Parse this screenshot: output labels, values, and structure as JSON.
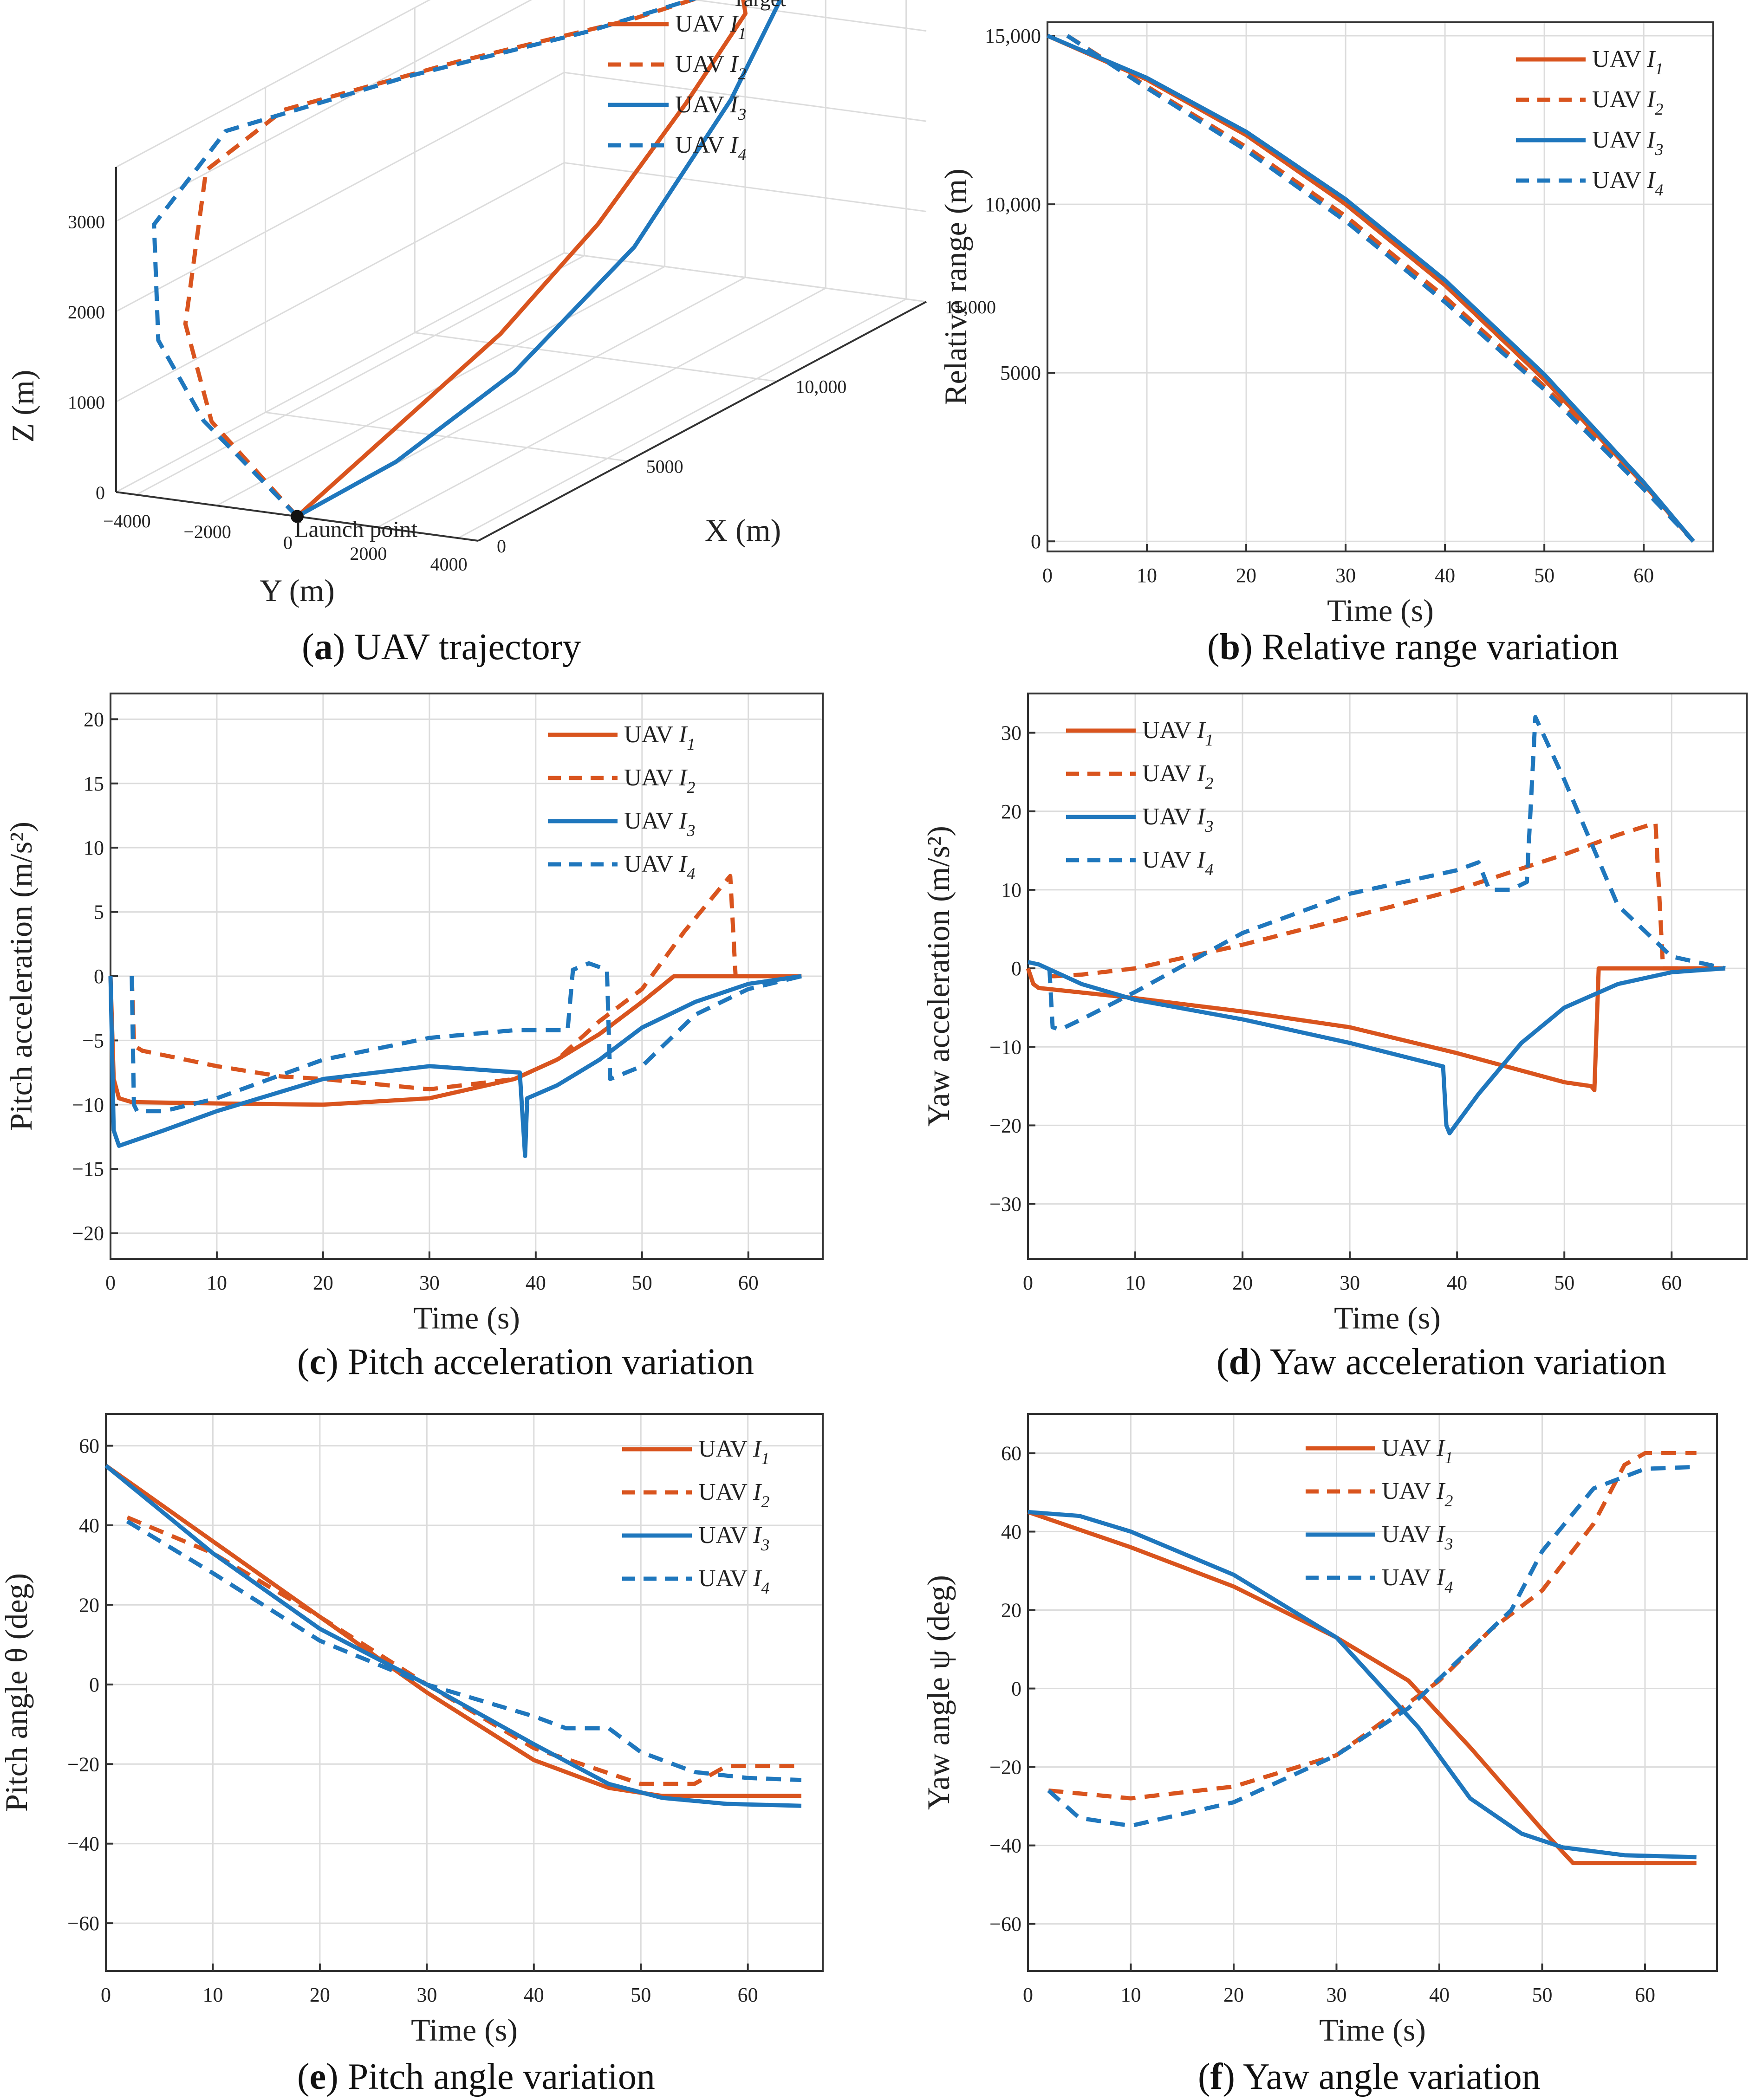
{
  "colors": {
    "orange": "#d9541e",
    "blue": "#1f77bd",
    "axis": "#333333",
    "grid": "#dcdcdc"
  },
  "legend_labels": [
    {
      "name": "UAV",
      "sub": "1"
    },
    {
      "name": "UAV",
      "sub": "2"
    },
    {
      "name": "UAV",
      "sub": "3"
    },
    {
      "name": "UAV",
      "sub": "4"
    }
  ],
  "subfigures": [
    {
      "letter": "a",
      "caption": " UAV trajectory"
    },
    {
      "letter": "b",
      "caption": " Relative range variation"
    },
    {
      "letter": "c",
      "caption": " Pitch acceleration variation"
    },
    {
      "letter": "d",
      "caption": " Yaw acceleration variation"
    },
    {
      "letter": "e",
      "caption": " Pitch angle variation"
    },
    {
      "letter": "f",
      "caption": " Yaw angle variation"
    }
  ],
  "chart_data": [
    {
      "id": "a",
      "type": "line3d",
      "xlabel": "X (m)",
      "ylabel": "Y (m)",
      "zlabel": "Z (m)",
      "xticks": [
        "0",
        "5000",
        "10,000",
        "15,000"
      ],
      "yticks": [
        "−4000",
        "−2000",
        "0",
        "2000",
        "4000"
      ],
      "zticks": [
        "0",
        "1000",
        "2000",
        "3000"
      ],
      "annotations": {
        "target": "Target",
        "launch": "Launch point"
      },
      "series": [
        {
          "name": "UAV I1",
          "color": "orange",
          "dash": false,
          "points": [
            [
              0,
              0,
              0
            ],
            [
              3000,
              300,
              500
            ],
            [
              6000,
              600,
              1000
            ],
            [
              9000,
              800,
              1700
            ],
            [
              12000,
              750,
              2500
            ],
            [
              14200,
              600,
              3100
            ],
            [
              14500,
              300,
              3250
            ],
            [
              14500,
              0,
              3300
            ]
          ]
        },
        {
          "name": "UAV I2",
          "color": "orange",
          "dash": true,
          "points": [
            [
              0,
              0,
              0
            ],
            [
              100,
              -2200,
              900
            ],
            [
              300,
              -3000,
              1900
            ],
            [
              1800,
              -3600,
              3300
            ],
            [
              4000,
              -3300,
              3600
            ],
            [
              8000,
              -2000,
              3500
            ],
            [
              12000,
              -600,
              3350
            ],
            [
              14500,
              0,
              3300
            ]
          ]
        },
        {
          "name": "UAV I3",
          "color": "blue",
          "dash": false,
          "points": [
            [
              0,
              0,
              0
            ],
            [
              2500,
              600,
              200
            ],
            [
              5500,
              1300,
              700
            ],
            [
              9000,
              1700,
              1500
            ],
            [
              12500,
              1500,
              2500
            ],
            [
              14800,
              1000,
              3150
            ],
            [
              15200,
              500,
              3400
            ],
            [
              14500,
              0,
              3300
            ]
          ]
        },
        {
          "name": "UAV I4",
          "color": "blue",
          "dash": true,
          "points": [
            [
              0,
              0,
              0
            ],
            [
              100,
              -2400,
              900
            ],
            [
              200,
              -3600,
              1700
            ],
            [
              1000,
              -4300,
              2800
            ],
            [
              3000,
              -4000,
              3500
            ],
            [
              7000,
              -2400,
              3500
            ],
            [
              11000,
              -900,
              3380
            ],
            [
              14500,
              0,
              3300
            ]
          ]
        }
      ]
    },
    {
      "id": "b",
      "type": "line",
      "xlabel": "Time (s)",
      "ylabel": "Relative range (m)",
      "xlim": [
        0,
        67
      ],
      "ylim": [
        -300,
        15400
      ],
      "xticks": [
        0,
        10,
        20,
        30,
        40,
        50,
        60
      ],
      "xtick_labels": [
        "0",
        "10",
        "20",
        "30",
        "40",
        "50",
        "60"
      ],
      "yticks": [
        0,
        5000,
        10000,
        15000
      ],
      "ytick_labels": [
        "0",
        "5000",
        "10,000",
        "15,000"
      ],
      "legend_pos": "top-right",
      "legend_labels_len": 4,
      "series": [
        {
          "name": "UAV I1",
          "color": "orange",
          "dash": false,
          "x": [
            0,
            10,
            20,
            30,
            40,
            50,
            60,
            65
          ],
          "y": [
            15000,
            13700,
            12050,
            10000,
            7600,
            4800,
            1700,
            0
          ]
        },
        {
          "name": "UAV I2",
          "color": "orange",
          "dash": true,
          "x": [
            2,
            10,
            20,
            30,
            40,
            50,
            60,
            65
          ],
          "y": [
            15000,
            13500,
            11700,
            9650,
            7250,
            4600,
            1650,
            0
          ]
        },
        {
          "name": "UAV I3",
          "color": "blue",
          "dash": false,
          "x": [
            0,
            10,
            20,
            30,
            40,
            50,
            60,
            65
          ],
          "y": [
            15000,
            13750,
            12150,
            10150,
            7750,
            4950,
            1750,
            0
          ]
        },
        {
          "name": "UAV I4",
          "color": "blue",
          "dash": true,
          "x": [
            2,
            10,
            20,
            30,
            40,
            50,
            60,
            65
          ],
          "y": [
            15000,
            13450,
            11600,
            9500,
            7100,
            4500,
            1550,
            0
          ]
        }
      ]
    },
    {
      "id": "c",
      "type": "line",
      "xlabel": "Time (s)",
      "ylabel": "Pitch acceleration (m/s²)",
      "xlim": [
        0,
        67
      ],
      "ylim": [
        -22,
        22
      ],
      "xticks": [
        0,
        10,
        20,
        30,
        40,
        50,
        60
      ],
      "xtick_labels": [
        "0",
        "10",
        "20",
        "30",
        "40",
        "50",
        "60"
      ],
      "yticks": [
        -20,
        -15,
        -10,
        -5,
        0,
        5,
        10,
        15,
        20
      ],
      "ytick_labels": [
        "−20",
        "−15",
        "−10",
        "−5",
        "0",
        "5",
        "10",
        "15",
        "20"
      ],
      "legend_pos": "top-right",
      "series": [
        {
          "name": "UAV I1",
          "color": "orange",
          "dash": false,
          "x": [
            0,
            0.3,
            0.8,
            2,
            10,
            20,
            30,
            38,
            42,
            46,
            50,
            53,
            58,
            65
          ],
          "y": [
            0,
            -8,
            -9.5,
            -9.8,
            -9.9,
            -10,
            -9.5,
            -8,
            -6.5,
            -4.5,
            -2,
            0,
            0,
            0
          ]
        },
        {
          "name": "UAV I2",
          "color": "orange",
          "dash": true,
          "x": [
            2,
            2.2,
            2.4,
            3,
            10,
            16,
            20,
            30,
            38,
            42,
            46,
            50,
            54,
            58.3,
            58.8,
            65
          ],
          "y": [
            0,
            -5,
            -5.5,
            -5.8,
            -7,
            -7.8,
            -8,
            -8.8,
            -8,
            -6.5,
            -3.5,
            -1,
            3.5,
            7.8,
            0,
            0
          ]
        },
        {
          "name": "UAV I3",
          "color": "blue",
          "dash": false,
          "x": [
            0,
            0.3,
            0.8,
            5,
            10,
            20,
            30,
            38.5,
            39,
            39.2,
            42,
            46,
            50,
            55,
            60,
            65
          ],
          "y": [
            0,
            -12,
            -13.2,
            -12,
            -10.5,
            -8,
            -7,
            -7.5,
            -14,
            -9.5,
            -8.5,
            -6.5,
            -4,
            -2,
            -0.6,
            0
          ]
        },
        {
          "name": "UAV I4",
          "color": "blue",
          "dash": true,
          "x": [
            2,
            2.2,
            2.5,
            5,
            10,
            20,
            30,
            38,
            43,
            43.5,
            45,
            46.7,
            47,
            50,
            55,
            60,
            65
          ],
          "y": [
            0,
            -10,
            -10.5,
            -10.5,
            -9.5,
            -6.5,
            -4.8,
            -4.2,
            -4.2,
            0.5,
            1,
            0.5,
            -8,
            -7,
            -3,
            -1,
            0
          ]
        }
      ]
    },
    {
      "id": "d",
      "type": "line",
      "xlabel": "Time (s)",
      "ylabel": "Yaw acceleration (m/s²)",
      "xlim": [
        0,
        67
      ],
      "ylim": [
        -37,
        35
      ],
      "xticks": [
        0,
        10,
        20,
        30,
        40,
        50,
        60
      ],
      "xtick_labels": [
        "0",
        "10",
        "20",
        "30",
        "40",
        "50",
        "60"
      ],
      "yticks": [
        -30,
        -20,
        -10,
        0,
        10,
        20,
        30
      ],
      "ytick_labels": [
        "−30",
        "−20",
        "−10",
        "0",
        "10",
        "20",
        "30"
      ],
      "legend_pos": "top-left",
      "series": [
        {
          "name": "UAV I1",
          "color": "orange",
          "dash": false,
          "x": [
            0,
            0.5,
            1,
            10,
            20,
            30,
            40,
            50,
            52.5,
            52.8,
            53.2,
            58,
            65
          ],
          "y": [
            0,
            -2,
            -2.5,
            -3.8,
            -5.5,
            -7.5,
            -10.8,
            -14.5,
            -15,
            -15.5,
            0,
            0,
            0
          ]
        },
        {
          "name": "UAV I2",
          "color": "orange",
          "dash": true,
          "x": [
            2,
            2.5,
            5,
            10,
            20,
            30,
            40,
            50,
            55,
            58.5,
            59.2,
            65
          ],
          "y": [
            -1,
            -1,
            -0.8,
            0,
            3,
            6.5,
            10,
            14.5,
            17,
            18.5,
            0,
            0
          ]
        },
        {
          "name": "UAV I3",
          "color": "blue",
          "dash": false,
          "x": [
            0,
            1,
            5,
            10,
            20,
            30,
            38.7,
            39,
            39.3,
            42,
            46,
            50,
            55,
            60,
            65
          ],
          "y": [
            0.8,
            0.5,
            -2,
            -4,
            -6.5,
            -9.5,
            -12.5,
            -20,
            -21,
            -16,
            -9.5,
            -5,
            -2,
            -0.5,
            0
          ]
        },
        {
          "name": "UAV I4",
          "color": "blue",
          "dash": true,
          "x": [
            2,
            2.3,
            3,
            5,
            10,
            20,
            30,
            40,
            42,
            43,
            45,
            46.5,
            47.3,
            50,
            55,
            60,
            65
          ],
          "y": [
            0,
            -7.5,
            -7.8,
            -6.5,
            -3,
            4.5,
            9.5,
            12.5,
            13.5,
            10,
            10,
            11,
            32,
            24,
            8,
            1.5,
            0
          ]
        }
      ]
    },
    {
      "id": "e",
      "type": "line",
      "xlabel": "Time (s)",
      "ylabel": "Pitch angle θ (deg)",
      "xlim": [
        0,
        67
      ],
      "ylim": [
        -72,
        68
      ],
      "xticks": [
        0,
        10,
        20,
        30,
        40,
        50,
        60
      ],
      "xtick_labels": [
        "0",
        "10",
        "20",
        "30",
        "40",
        "50",
        "60"
      ],
      "yticks": [
        -60,
        -40,
        -20,
        0,
        20,
        40,
        60
      ],
      "ytick_labels": [
        "−60",
        "−40",
        "−20",
        "0",
        "20",
        "40",
        "60"
      ],
      "legend_pos": "top-right",
      "series": [
        {
          "name": "UAV I1",
          "color": "orange",
          "dash": false,
          "x": [
            0,
            10,
            20,
            30,
            40,
            47,
            52,
            55,
            65
          ],
          "y": [
            55,
            36,
            17,
            -2,
            -19,
            -26,
            -28,
            -28,
            -28
          ]
        },
        {
          "name": "UAV I2",
          "color": "orange",
          "dash": true,
          "x": [
            2,
            10,
            20,
            30,
            40,
            50,
            55,
            58,
            65
          ],
          "y": [
            42,
            33,
            17,
            0,
            -16,
            -25,
            -25,
            -20.5,
            -20.5
          ]
        },
        {
          "name": "UAV I3",
          "color": "blue",
          "dash": false,
          "x": [
            0,
            10,
            20,
            30,
            40,
            47,
            52,
            58,
            65
          ],
          "y": [
            55,
            33,
            14,
            0,
            -15,
            -25,
            -28.5,
            -30,
            -30.5
          ]
        },
        {
          "name": "UAV I4",
          "color": "blue",
          "dash": true,
          "x": [
            2,
            10,
            20,
            30,
            40,
            43,
            47,
            50,
            55,
            60,
            65
          ],
          "y": [
            41,
            28,
            11,
            0,
            -8,
            -11,
            -11,
            -17,
            -22,
            -23.5,
            -24
          ]
        }
      ]
    },
    {
      "id": "f",
      "type": "line",
      "xlabel": "Time (s)",
      "ylabel": "Yaw angle ψ (deg)",
      "xlim": [
        0,
        67
      ],
      "ylim": [
        -72,
        70
      ],
      "xticks": [
        0,
        10,
        20,
        30,
        40,
        50,
        60
      ],
      "xtick_labels": [
        "0",
        "10",
        "20",
        "30",
        "40",
        "50",
        "60"
      ],
      "yticks": [
        -60,
        -40,
        -20,
        0,
        20,
        40,
        60
      ],
      "ytick_labels": [
        "−60",
        "−40",
        "−20",
        "0",
        "20",
        "40",
        "60"
      ],
      "legend_pos": "top-center",
      "series": [
        {
          "name": "UAV I1",
          "color": "orange",
          "dash": false,
          "x": [
            0,
            10,
            20,
            30,
            37,
            43,
            50,
            53,
            58,
            65
          ],
          "y": [
            45,
            36,
            26,
            13,
            2,
            -15,
            -36,
            -44.5,
            -44.5,
            -44.5
          ]
        },
        {
          "name": "UAV I2",
          "color": "orange",
          "dash": true,
          "x": [
            2,
            10,
            20,
            30,
            40,
            45,
            50,
            55,
            58,
            60,
            65
          ],
          "y": [
            -26,
            -28,
            -25,
            -17,
            2,
            15,
            25,
            42,
            57,
            60,
            60
          ]
        },
        {
          "name": "UAV I3",
          "color": "blue",
          "dash": false,
          "x": [
            0,
            5,
            10,
            20,
            30,
            38,
            43,
            48,
            52,
            58,
            65
          ],
          "y": [
            45,
            44,
            40,
            29,
            13,
            -10,
            -28,
            -37,
            -40.5,
            -42.5,
            -43
          ]
        },
        {
          "name": "UAV I4",
          "color": "blue",
          "dash": true,
          "x": [
            2,
            5,
            10,
            20,
            30,
            37,
            43,
            47,
            50,
            55,
            60,
            65
          ],
          "y": [
            -26,
            -33,
            -35,
            -29,
            -17,
            -5,
            10,
            20,
            35,
            51,
            56,
            56.5
          ]
        }
      ]
    }
  ]
}
